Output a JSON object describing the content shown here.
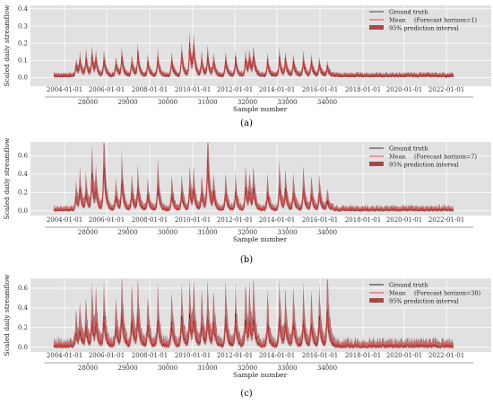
{
  "chart_data": [
    {
      "type": "line",
      "caption": "(a)",
      "ylabel": "Scaled daily streamflow",
      "xlabel": "Sample number",
      "ylim": [
        -0.05,
        0.42
      ],
      "yticks": [
        "0.0",
        "0.1",
        "0.2",
        "0.3",
        "0.4"
      ],
      "ytick_values": [
        0,
        0.1,
        0.2,
        0.3,
        0.4
      ],
      "date_ticks": [
        "2004-01-01",
        "2006-01-01",
        "2008-01-01",
        "2010-01-01",
        "2012-01-01",
        "2014-01-01",
        "2016-01-01",
        "2018-01-01",
        "2020-01-01",
        "2022-01-01"
      ],
      "sample_ticks": [
        "28000",
        "29000",
        "30000",
        "31000",
        "32000",
        "33000",
        "34000"
      ],
      "sample_range": [
        27300,
        34300
      ],
      "grid": true,
      "legend_position": "top-right",
      "legend": {
        "ground_truth": "Ground truth",
        "mean": "Mean",
        "horizon": "(Forecast horizon=1)",
        "interval": "95% prediction interval"
      },
      "colors": {
        "ground_truth": "#333333",
        "mean": "#e03030",
        "interval": "#a84848",
        "background": "#e1e1e1"
      },
      "peaks": [
        {
          "x": 27700,
          "y": 0.07
        },
        {
          "x": 27800,
          "y": 0.09
        },
        {
          "x": 27950,
          "y": 0.11
        },
        {
          "x": 28100,
          "y": 0.12
        },
        {
          "x": 28200,
          "y": 0.09
        },
        {
          "x": 28400,
          "y": 0.11
        },
        {
          "x": 28700,
          "y": 0.08
        },
        {
          "x": 28850,
          "y": 0.11
        },
        {
          "x": 29100,
          "y": 0.09
        },
        {
          "x": 29250,
          "y": 0.13
        },
        {
          "x": 29500,
          "y": 0.09
        },
        {
          "x": 29750,
          "y": 0.11
        },
        {
          "x": 30100,
          "y": 0.1
        },
        {
          "x": 30350,
          "y": 0.14
        },
        {
          "x": 30550,
          "y": 0.19
        },
        {
          "x": 30650,
          "y": 0.16
        },
        {
          "x": 30850,
          "y": 0.1
        },
        {
          "x": 31000,
          "y": 0.13
        },
        {
          "x": 31150,
          "y": 0.09
        },
        {
          "x": 31450,
          "y": 0.1
        },
        {
          "x": 31700,
          "y": 0.1
        },
        {
          "x": 31950,
          "y": 0.11
        },
        {
          "x": 32050,
          "y": 0.1
        },
        {
          "x": 32150,
          "y": 0.12
        },
        {
          "x": 32500,
          "y": 0.09
        },
        {
          "x": 32800,
          "y": 0.12
        },
        {
          "x": 32950,
          "y": 0.1
        },
        {
          "x": 33150,
          "y": 0.09
        },
        {
          "x": 33400,
          "y": 0.1
        },
        {
          "x": 33600,
          "y": 0.09
        },
        {
          "x": 33800,
          "y": 0.08
        },
        {
          "x": 34000,
          "y": 0.06
        }
      ]
    },
    {
      "type": "line",
      "caption": "(b)",
      "ylabel": "Scaled daily streamflow",
      "xlabel": "Sample number",
      "ylim": [
        -0.05,
        0.75
      ],
      "yticks": [
        "0.0",
        "0.2",
        "0.4",
        "0.6"
      ],
      "ytick_values": [
        0,
        0.2,
        0.4,
        0.6
      ],
      "date_ticks": [
        "2004-01-01",
        "2006-01-01",
        "2008-01-01",
        "2010-01-01",
        "2012-01-01",
        "2014-01-01",
        "2016-01-01",
        "2018-01-01",
        "2020-01-01",
        "2022-01-01"
      ],
      "sample_ticks": [
        "28000",
        "29000",
        "30000",
        "31000",
        "32000",
        "33000",
        "34000"
      ],
      "sample_range": [
        27300,
        34300
      ],
      "grid": true,
      "legend_position": "top-right",
      "legend": {
        "ground_truth": "Ground truth",
        "mean": "Mean",
        "horizon": "(Forecast horizon=7)",
        "interval": "95% prediction interval"
      },
      "colors": {
        "ground_truth": "#222222",
        "mean": "#e03030",
        "interval": "#a84848",
        "background": "#e1e1e1"
      },
      "peaks": [
        {
          "x": 27700,
          "y": 0.16
        },
        {
          "x": 27800,
          "y": 0.22
        },
        {
          "x": 27950,
          "y": 0.2
        },
        {
          "x": 28100,
          "y": 0.38
        },
        {
          "x": 28200,
          "y": 0.2
        },
        {
          "x": 28400,
          "y": 0.55
        },
        {
          "x": 28700,
          "y": 0.17
        },
        {
          "x": 28850,
          "y": 0.32
        },
        {
          "x": 29100,
          "y": 0.2
        },
        {
          "x": 29250,
          "y": 0.24
        },
        {
          "x": 29500,
          "y": 0.18
        },
        {
          "x": 29750,
          "y": 0.3
        },
        {
          "x": 30100,
          "y": 0.2
        },
        {
          "x": 30350,
          "y": 0.2
        },
        {
          "x": 30550,
          "y": 0.25
        },
        {
          "x": 30650,
          "y": 0.22
        },
        {
          "x": 30850,
          "y": 0.2
        },
        {
          "x": 31000,
          "y": 0.58
        },
        {
          "x": 31150,
          "y": 0.17
        },
        {
          "x": 31450,
          "y": 0.21
        },
        {
          "x": 31700,
          "y": 0.2
        },
        {
          "x": 31950,
          "y": 0.25
        },
        {
          "x": 32050,
          "y": 0.19
        },
        {
          "x": 32150,
          "y": 0.22
        },
        {
          "x": 32500,
          "y": 0.2
        },
        {
          "x": 32800,
          "y": 0.28
        },
        {
          "x": 32950,
          "y": 0.22
        },
        {
          "x": 33150,
          "y": 0.2
        },
        {
          "x": 33400,
          "y": 0.26
        },
        {
          "x": 33600,
          "y": 0.2
        },
        {
          "x": 33800,
          "y": 0.2
        },
        {
          "x": 34000,
          "y": 0.12
        }
      ]
    },
    {
      "type": "line",
      "caption": "(c)",
      "ylabel": "Scaled daily streamflow",
      "xlabel": "Sample number",
      "ylim": [
        -0.05,
        0.7
      ],
      "yticks": [
        "0.0",
        "0.2",
        "0.4",
        "0.6"
      ],
      "ytick_values": [
        0,
        0.2,
        0.4,
        0.6
      ],
      "date_ticks": [
        "2004-01-01",
        "2006-01-01",
        "2008-01-01",
        "2010-01-01",
        "2012-01-01",
        "2014-01-01",
        "2016-01-01",
        "2018-01-01",
        "2020-01-01",
        "2022-01-01"
      ],
      "sample_ticks": [
        "28000",
        "29000",
        "30000",
        "31000",
        "32000",
        "33000",
        "34000"
      ],
      "sample_range": [
        27300,
        34300
      ],
      "grid": true,
      "legend_position": "top-right",
      "legend": {
        "ground_truth": "Ground truth",
        "mean": "Mean",
        "horizon": "(Forecast horizon=30)",
        "interval": "95% prediction interval"
      },
      "colors": {
        "ground_truth": "#111111",
        "mean": "#e03030",
        "interval": "#a84848",
        "background": "#e1e1e1"
      },
      "peaks": [
        {
          "x": 27700,
          "y": 0.15
        },
        {
          "x": 27800,
          "y": 0.18
        },
        {
          "x": 27950,
          "y": 0.2
        },
        {
          "x": 28100,
          "y": 0.28
        },
        {
          "x": 28200,
          "y": 0.22
        },
        {
          "x": 28400,
          "y": 0.3
        },
        {
          "x": 28700,
          "y": 0.22
        },
        {
          "x": 28850,
          "y": 0.35
        },
        {
          "x": 29100,
          "y": 0.28
        },
        {
          "x": 29250,
          "y": 0.32
        },
        {
          "x": 29500,
          "y": 0.25
        },
        {
          "x": 29750,
          "y": 0.28
        },
        {
          "x": 30100,
          "y": 0.25
        },
        {
          "x": 30350,
          "y": 0.3
        },
        {
          "x": 30550,
          "y": 0.3
        },
        {
          "x": 30650,
          "y": 0.28
        },
        {
          "x": 30850,
          "y": 0.25
        },
        {
          "x": 31000,
          "y": 0.3
        },
        {
          "x": 31150,
          "y": 0.25
        },
        {
          "x": 31450,
          "y": 0.3
        },
        {
          "x": 31700,
          "y": 0.28
        },
        {
          "x": 31950,
          "y": 0.3
        },
        {
          "x": 32050,
          "y": 0.25
        },
        {
          "x": 32150,
          "y": 0.28
        },
        {
          "x": 32500,
          "y": 0.25
        },
        {
          "x": 32800,
          "y": 0.3
        },
        {
          "x": 32950,
          "y": 0.25
        },
        {
          "x": 33150,
          "y": 0.27
        },
        {
          "x": 33400,
          "y": 0.28
        },
        {
          "x": 33600,
          "y": 0.25
        },
        {
          "x": 33800,
          "y": 0.28
        },
        {
          "x": 34000,
          "y": 0.4
        }
      ]
    }
  ]
}
